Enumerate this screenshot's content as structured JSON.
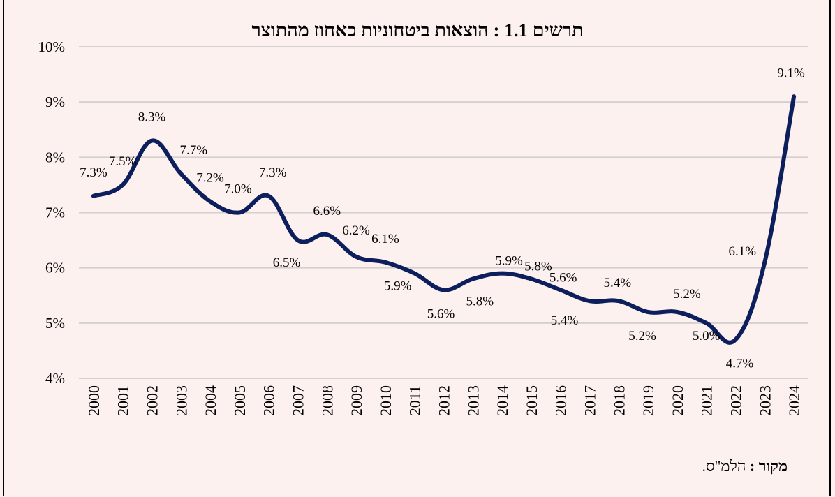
{
  "chart_data": {
    "type": "line",
    "title": "תרשים 1.1 : הוצאות ביטחוניות כאחוז מהתוצר",
    "categories": [
      "2000",
      "2001",
      "2002",
      "2003",
      "2004",
      "2005",
      "2006",
      "2007",
      "2008",
      "2009",
      "2010",
      "2011",
      "2012",
      "2013",
      "2014",
      "2015",
      "2016",
      "2017",
      "2018",
      "2019",
      "2020",
      "2021",
      "2022",
      "2023",
      "2024"
    ],
    "values": [
      7.3,
      7.5,
      8.3,
      7.7,
      7.2,
      7.0,
      7.3,
      6.5,
      6.6,
      6.2,
      6.1,
      5.9,
      5.6,
      5.8,
      5.9,
      5.8,
      5.6,
      5.4,
      5.4,
      5.2,
      5.2,
      5.0,
      4.7,
      6.1,
      9.1
    ],
    "data_labels": [
      "7.3%",
      "7.5%",
      "8.3%",
      "7.7%",
      "7.2%",
      "7.0%",
      "7.3%",
      "6.5%",
      "6.6%",
      "6.2%",
      "6.1%",
      "5.9%",
      "5.6%",
      "5.8%",
      "5.9%",
      "5.8%",
      "5.6%",
      "5.4%",
      "5.4%",
      "5.2%",
      "5.2%",
      "5.0%",
      "4.7%",
      "6.1%",
      "9.1%"
    ],
    "y_ticks": [
      "4%",
      "5%",
      "6%",
      "7%",
      "8%",
      "9%",
      "10%"
    ],
    "ylim": [
      4,
      10
    ],
    "xlabel": "",
    "ylabel": "",
    "grid": true,
    "line_color": "#0c1f5c",
    "grid_color": "#d4d0cf",
    "background": "#fdf1f0"
  },
  "source": {
    "label": "מקור",
    "text": "הלמ\"ס."
  }
}
